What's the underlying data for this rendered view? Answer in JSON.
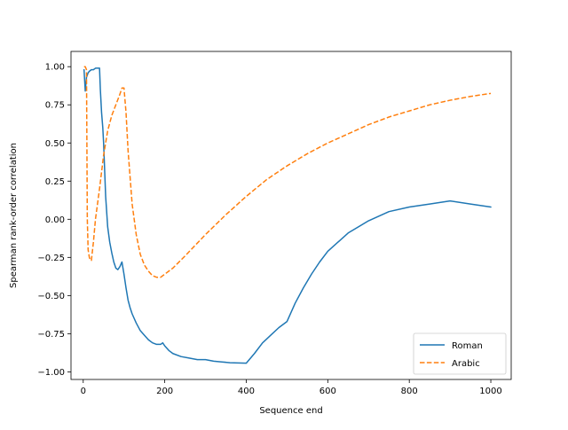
{
  "chart_data": {
    "type": "line",
    "xlabel": "Sequence end",
    "ylabel": "Spearman rank-order correlation",
    "xlim": [
      -30,
      1050
    ],
    "ylim": [
      -1.05,
      1.1
    ],
    "xticks": [
      0,
      200,
      400,
      600,
      800,
      1000
    ],
    "xtick_labels": [
      "0",
      "200",
      "400",
      "600",
      "800",
      "1000"
    ],
    "yticks": [
      -1.0,
      -0.75,
      -0.5,
      -0.25,
      0.0,
      0.25,
      0.5,
      0.75,
      1.0
    ],
    "ytick_labels": [
      "−1.00",
      "−0.75",
      "−0.50",
      "−0.25",
      "0.00",
      "0.25",
      "0.50",
      "0.75",
      "1.00"
    ],
    "grid": false,
    "legend_position": "lower-right",
    "series": [
      {
        "name": "Roman",
        "color": "#1f77b4",
        "dash": "solid",
        "x": [
          2,
          5,
          8,
          12,
          15,
          20,
          25,
          30,
          35,
          40,
          42,
          45,
          48,
          50,
          55,
          60,
          65,
          70,
          75,
          80,
          85,
          90,
          95,
          100,
          105,
          110,
          115,
          120,
          130,
          140,
          150,
          160,
          170,
          180,
          190,
          195,
          200,
          210,
          220,
          240,
          260,
          280,
          300,
          320,
          340,
          360,
          380,
          400,
          420,
          440,
          460,
          480,
          500,
          520,
          540,
          560,
          580,
          600,
          650,
          700,
          750,
          800,
          850,
          900,
          950,
          1000
        ],
        "y": [
          0.98,
          0.84,
          0.93,
          0.96,
          0.97,
          0.98,
          0.98,
          0.99,
          0.99,
          0.99,
          0.85,
          0.7,
          0.6,
          0.5,
          0.15,
          -0.05,
          -0.15,
          -0.22,
          -0.28,
          -0.32,
          -0.33,
          -0.31,
          -0.28,
          -0.36,
          -0.45,
          -0.53,
          -0.58,
          -0.62,
          -0.68,
          -0.73,
          -0.76,
          -0.79,
          -0.81,
          -0.82,
          -0.82,
          -0.81,
          -0.83,
          -0.86,
          -0.88,
          -0.9,
          -0.91,
          -0.92,
          -0.92,
          -0.93,
          -0.935,
          -0.94,
          -0.942,
          -0.943,
          -0.88,
          -0.81,
          -0.76,
          -0.71,
          -0.67,
          -0.55,
          -0.45,
          -0.36,
          -0.28,
          -0.21,
          -0.09,
          -0.01,
          0.05,
          0.08,
          0.1,
          0.12,
          0.1,
          0.08
        ]
      },
      {
        "name": "Arabic",
        "color": "#ff7f0e",
        "dash": "dashed",
        "x": [
          2,
          5,
          8,
          10,
          12,
          15,
          18,
          20,
          25,
          30,
          40,
          50,
          60,
          70,
          80,
          90,
          95,
          100,
          105,
          110,
          120,
          130,
          140,
          150,
          160,
          170,
          180,
          190,
          200,
          220,
          250,
          300,
          350,
          400,
          450,
          500,
          550,
          600,
          650,
          700,
          750,
          800,
          850,
          900,
          950,
          1000
        ],
        "y": [
          1.0,
          1.0,
          0.98,
          0.0,
          -0.2,
          -0.25,
          -0.27,
          -0.27,
          -0.15,
          0.0,
          0.2,
          0.42,
          0.58,
          0.68,
          0.75,
          0.82,
          0.86,
          0.86,
          0.7,
          0.45,
          0.1,
          -0.1,
          -0.23,
          -0.3,
          -0.34,
          -0.37,
          -0.38,
          -0.38,
          -0.36,
          -0.32,
          -0.24,
          -0.1,
          0.03,
          0.15,
          0.26,
          0.35,
          0.43,
          0.5,
          0.56,
          0.62,
          0.67,
          0.71,
          0.75,
          0.78,
          0.805,
          0.825
        ]
      }
    ]
  }
}
